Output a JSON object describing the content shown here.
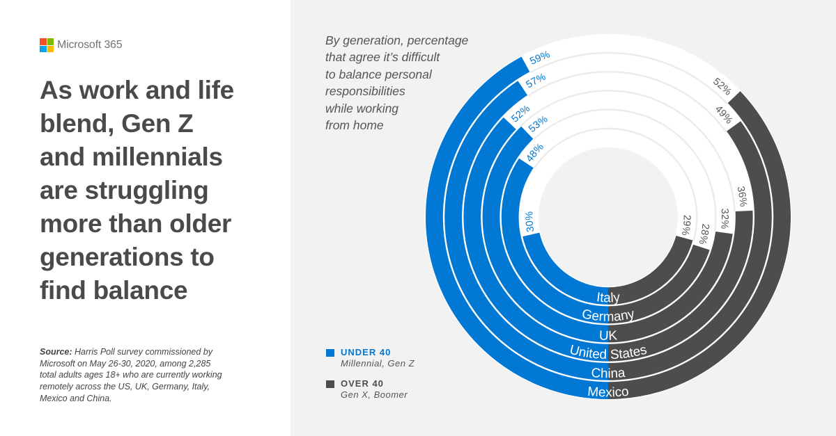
{
  "brand": {
    "name": "Microsoft 365",
    "logo_icon": "microsoft-four-squares-logo",
    "logo_colors": [
      "#f25022",
      "#7fba00",
      "#00a4ef",
      "#ffb900"
    ]
  },
  "headline": {
    "lines": [
      "As work and life",
      "blend, Gen Z",
      "and millennials",
      "are struggling",
      "more than older",
      "generations to",
      "find balance"
    ]
  },
  "source": {
    "label": "Source:",
    "lines": [
      "Harris Poll survey commissioned by",
      "Microsoft on May 26-30, 2020, among 2,285",
      "total adults ages 18+ who are currently working",
      "remotely across the US, UK, Germany, Italy,",
      "Mexico and China."
    ]
  },
  "chart_panel": {
    "subtitle_lines": [
      "By generation, percentage",
      "that agree it’s difficult",
      "to balance personal",
      "responsibilities",
      "while working",
      "from home"
    ]
  },
  "legend": {
    "items": [
      {
        "label": "UNDER 40",
        "sublabel": "Millennial, Gen Z",
        "color": "#0078d4"
      },
      {
        "label": "OVER 40",
        "sublabel": "Gen X, Boomer",
        "color": "#4d4d4d"
      }
    ]
  },
  "colors": {
    "accent_blue": "#0078d4",
    "dark_grey": "#4d4d4d",
    "panel_background": "#f2f2f2",
    "headline_text": "#4a4a4a"
  },
  "chart_data": {
    "type": "bar",
    "variant": "radial",
    "title": "By generation, percentage that agree it’s difficult to balance personal responsibilities while working from home",
    "categories": [
      "Italy",
      "Germany",
      "UK",
      "United States",
      "China",
      "Mexico"
    ],
    "category_order": "inner-to-outer",
    "unit": "%",
    "series": [
      {
        "name": "Under 40",
        "description": "Millennial, Gen Z",
        "color": "#0078d4",
        "values": [
          30,
          48,
          53,
          52,
          57,
          59
        ],
        "labels": [
          "30%",
          "48%",
          "53%",
          "52%",
          "57%",
          "59%"
        ]
      },
      {
        "name": "Over 40",
        "description": "Gen X, Boomer",
        "color": "#4d4d4d",
        "values": [
          29,
          28,
          32,
          36,
          49,
          52
        ],
        "labels": [
          "29%",
          "28%",
          "32%",
          "36%",
          "49%",
          "52%"
        ]
      }
    ],
    "grid": false,
    "legend": "bottom-left"
  }
}
